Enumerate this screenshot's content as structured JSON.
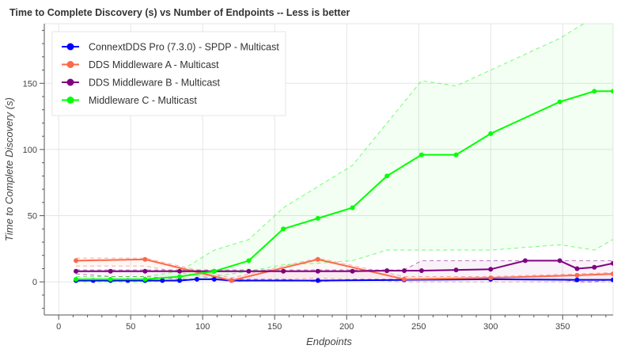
{
  "chart_data": {
    "type": "line",
    "title": "Time to Complete Discovery (s) vs Number of Endpoints  -- Less is better",
    "xlabel": "Endpoints",
    "ylabel": "Time to Complete Discovery (s)",
    "xlim": [
      -10,
      385
    ],
    "ylim": [
      -25,
      195
    ],
    "xticks": [
      0,
      50,
      100,
      150,
      200,
      250,
      300,
      350
    ],
    "yticks": [
      0,
      50,
      100,
      150
    ],
    "grid": true,
    "legend": "top-left",
    "series": [
      {
        "name": "ConnextDDS Pro (7.3.0) - SPDP - Multicast",
        "color": "#0000ff",
        "x": [
          12,
          24,
          36,
          48,
          60,
          72,
          84,
          96,
          108,
          120,
          180,
          240,
          300,
          360,
          385
        ],
        "values": [
          1,
          1,
          1,
          1,
          1,
          1,
          1,
          2,
          2,
          1,
          1,
          1.5,
          2,
          1.5,
          1.5
        ]
      },
      {
        "name": "DDS Middleware A - Multicast",
        "color": "#fa6a4a",
        "x": [
          12,
          60,
          120,
          180,
          240,
          300,
          360,
          385
        ],
        "values": [
          16,
          17,
          1,
          17,
          2,
          3,
          5,
          6
        ],
        "lower": [
          12,
          12,
          0,
          3,
          0,
          0,
          0,
          0
        ],
        "upper": [
          18,
          18,
          3,
          18,
          4,
          4,
          6,
          7
        ]
      },
      {
        "name": "DDS Middleware B - Multicast",
        "color": "#800080",
        "x": [
          12,
          36,
          60,
          84,
          108,
          132,
          156,
          180,
          204,
          228,
          240,
          252,
          276,
          300,
          324,
          348,
          360,
          372,
          385
        ],
        "values": [
          8,
          8,
          8,
          8,
          8,
          8,
          8,
          8,
          8,
          8.5,
          8.5,
          8.5,
          9,
          9.5,
          16,
          16,
          10,
          11,
          14
        ],
        "lower": [
          6,
          4,
          4,
          2,
          2,
          2,
          2,
          0,
          2,
          2,
          2,
          2,
          2,
          2,
          2,
          2,
          0,
          0,
          2
        ],
        "upper": [
          9,
          9,
          9,
          9,
          9,
          9,
          9,
          9,
          9,
          9,
          9,
          16,
          16,
          16,
          16,
          16,
          16,
          16,
          16
        ]
      },
      {
        "name": "Middleware C - Multicast",
        "color": "#00ff00",
        "x": [
          12,
          36,
          60,
          84,
          108,
          132,
          156,
          180,
          204,
          228,
          252,
          276,
          300,
          348,
          372,
          385
        ],
        "values": [
          2,
          2,
          2,
          4,
          8,
          16,
          40,
          48,
          56,
          80,
          96,
          96,
          112,
          136,
          144,
          144
        ],
        "lower": [
          0,
          0,
          0,
          1,
          4,
          8,
          13,
          14,
          16,
          24,
          24,
          24,
          24,
          28,
          24,
          32
        ],
        "upper": [
          4,
          4,
          4,
          8,
          24,
          32,
          56,
          72,
          88,
          120,
          152,
          148,
          160,
          184,
          200,
          200
        ]
      }
    ]
  }
}
